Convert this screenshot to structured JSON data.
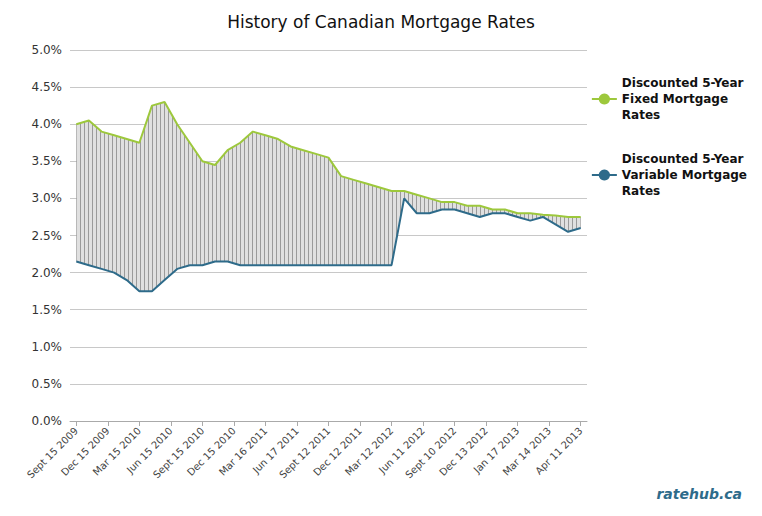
{
  "chart_data": {
    "type": "line",
    "title": "History of Canadian Mortgage Rates",
    "x": [
      0,
      1,
      2,
      3,
      4,
      5,
      6,
      7,
      8,
      9,
      10,
      11,
      12,
      13,
      14,
      15,
      16,
      17,
      18,
      19,
      20,
      21,
      22,
      23,
      24,
      25,
      26,
      27,
      28,
      29,
      30,
      31,
      32,
      33,
      34,
      35,
      36,
      37,
      38,
      39,
      40
    ],
    "series": [
      {
        "name": "Discounted 5-Year\nFixed Mortgage\nRates",
        "color": "#9dc83c",
        "values": [
          4.0,
          4.05,
          3.9,
          3.85,
          3.8,
          3.75,
          4.25,
          4.3,
          4.0,
          3.75,
          3.5,
          3.45,
          3.65,
          3.75,
          3.9,
          3.85,
          3.8,
          3.7,
          3.65,
          3.6,
          3.55,
          3.3,
          3.25,
          3.2,
          3.15,
          3.1,
          3.1,
          3.05,
          3.0,
          2.95,
          2.95,
          2.9,
          2.9,
          2.85,
          2.85,
          2.8,
          2.8,
          2.78,
          2.77,
          2.75,
          2.75
        ]
      },
      {
        "name": "Discounted 5-Year\nVariable Mortgage\nRates",
        "color": "#2e6b8a",
        "values": [
          2.15,
          2.1,
          2.05,
          2.0,
          1.9,
          1.75,
          1.75,
          1.9,
          2.05,
          2.1,
          2.1,
          2.15,
          2.15,
          2.1,
          2.1,
          2.1,
          2.1,
          2.1,
          2.1,
          2.1,
          2.1,
          2.1,
          2.1,
          2.1,
          2.1,
          2.1,
          3.0,
          2.8,
          2.8,
          2.85,
          2.85,
          2.8,
          2.75,
          2.8,
          2.8,
          2.75,
          2.7,
          2.75,
          2.65,
          2.55,
          2.6
        ]
      }
    ],
    "xlim": [
      -0.5,
      40.5
    ],
    "xticks": [
      {
        "value": 0,
        "label": "Sept 15 2009"
      },
      {
        "value": 2.5,
        "label": "Dec 15 2009"
      },
      {
        "value": 5,
        "label": "Mar 15 2010"
      },
      {
        "value": 7.5,
        "label": "Jun 15 2010"
      },
      {
        "value": 10,
        "label": "Sept 15 2010"
      },
      {
        "value": 12.5,
        "label": "Dec 15 2010"
      },
      {
        "value": 15,
        "label": "Mar 16 2011"
      },
      {
        "value": 17.5,
        "label": "Jun 17 2011"
      },
      {
        "value": 20,
        "label": "Sept 12 2011"
      },
      {
        "value": 22.5,
        "label": "Dec 12 2011"
      },
      {
        "value": 25,
        "label": "Mar 12 2012"
      },
      {
        "value": 27.5,
        "label": "Jun 11 2012"
      },
      {
        "value": 30,
        "label": "Sept 10 2012"
      },
      {
        "value": 32.5,
        "label": "Dec 13 2012"
      },
      {
        "value": 35,
        "label": "Jan 17 2013"
      },
      {
        "value": 37.5,
        "label": "Mar 14 2013"
      },
      {
        "value": 40,
        "label": "Apr 11 2013"
      }
    ],
    "ylim": [
      0,
      5
    ],
    "yticks": [
      {
        "value": 0,
        "label": "0.0%"
      },
      {
        "value": 0.5,
        "label": "0.5%"
      },
      {
        "value": 1,
        "label": "1.0%"
      },
      {
        "value": 1.5,
        "label": "1.5%"
      },
      {
        "value": 2,
        "label": "2.0%"
      },
      {
        "value": 2.5,
        "label": "2.5%"
      },
      {
        "value": 3,
        "label": "3.0%"
      },
      {
        "value": 3.5,
        "label": "3.5%"
      },
      {
        "value": 4,
        "label": "4.0%"
      },
      {
        "value": 4.5,
        "label": "4.5%"
      },
      {
        "value": 5,
        "label": "5.0%"
      }
    ],
    "grid": true,
    "legend": "right",
    "annotations": [
      "ratehub.ca"
    ]
  }
}
